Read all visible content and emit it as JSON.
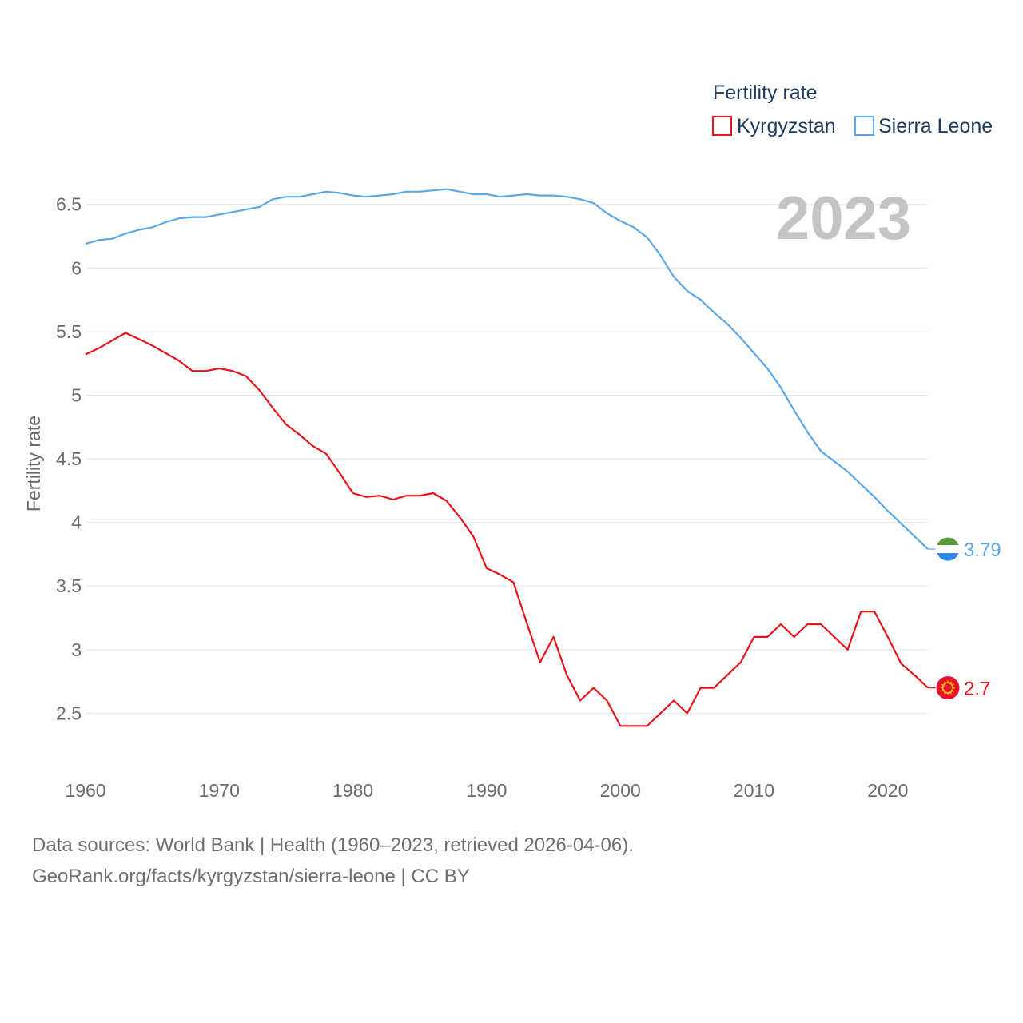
{
  "chart_data": {
    "type": "line",
    "title": "Fertility rate",
    "ylabel": "Fertility rate",
    "xlabel": "",
    "current_year_label": "2023",
    "xlim": [
      1960,
      2023
    ],
    "ylim": [
      2.0,
      6.85
    ],
    "x_ticks": [
      1960,
      1970,
      1980,
      1990,
      2000,
      2010,
      2020
    ],
    "y_ticks": [
      2.5,
      3,
      3.5,
      4,
      4.5,
      5,
      5.5,
      6,
      6.5
    ],
    "grid": true,
    "legend": "top-right",
    "x": [
      1960,
      1961,
      1962,
      1963,
      1964,
      1965,
      1966,
      1967,
      1968,
      1969,
      1970,
      1971,
      1972,
      1973,
      1974,
      1975,
      1976,
      1977,
      1978,
      1979,
      1980,
      1981,
      1982,
      1983,
      1984,
      1985,
      1986,
      1987,
      1988,
      1989,
      1990,
      1991,
      1992,
      1993,
      1994,
      1995,
      1996,
      1997,
      1998,
      1999,
      2000,
      2001,
      2002,
      2003,
      2004,
      2005,
      2006,
      2007,
      2008,
      2009,
      2010,
      2011,
      2012,
      2013,
      2014,
      2015,
      2016,
      2017,
      2018,
      2019,
      2020,
      2021,
      2022,
      2023
    ],
    "series": [
      {
        "name": "Kyrgyzstan",
        "color": "#e8141c",
        "end_label": "2.7",
        "flag_icon": "kyrgyzstan-flag-icon",
        "values": [
          5.32,
          5.37,
          5.43,
          5.49,
          5.44,
          5.39,
          5.33,
          5.27,
          5.19,
          5.19,
          5.21,
          5.19,
          5.15,
          5.04,
          4.9,
          4.77,
          4.69,
          4.6,
          4.54,
          4.39,
          4.23,
          4.2,
          4.21,
          4.18,
          4.21,
          4.21,
          4.23,
          4.17,
          4.04,
          3.89,
          3.64,
          3.59,
          3.53,
          3.21,
          2.9,
          3.1,
          2.8,
          2.6,
          2.7,
          2.6,
          2.4,
          2.4,
          2.4,
          2.5,
          2.6,
          2.5,
          2.7,
          2.7,
          2.8,
          2.9,
          3.1,
          3.1,
          3.2,
          3.1,
          3.2,
          3.2,
          3.1,
          3.0,
          3.3,
          3.3,
          3.1,
          2.89,
          2.8,
          2.7
        ]
      },
      {
        "name": "Sierra Leone",
        "color": "#5ba7e8",
        "end_label": "3.79",
        "flag_icon": "sierra-leone-flag-icon",
        "values": [
          6.19,
          6.22,
          6.23,
          6.27,
          6.3,
          6.32,
          6.36,
          6.39,
          6.4,
          6.4,
          6.42,
          6.44,
          6.46,
          6.48,
          6.54,
          6.56,
          6.56,
          6.58,
          6.6,
          6.59,
          6.57,
          6.56,
          6.57,
          6.58,
          6.6,
          6.6,
          6.61,
          6.62,
          6.6,
          6.58,
          6.58,
          6.56,
          6.57,
          6.58,
          6.57,
          6.57,
          6.56,
          6.54,
          6.51,
          6.43,
          6.37,
          6.32,
          6.24,
          6.1,
          5.93,
          5.82,
          5.75,
          5.65,
          5.56,
          5.45,
          5.33,
          5.21,
          5.06,
          4.88,
          4.71,
          4.56,
          4.48,
          4.4,
          4.3,
          4.2,
          4.09,
          3.99,
          3.89,
          3.79
        ]
      }
    ]
  },
  "footer": {
    "line1": "Data sources: World Bank | Health (1960–2023, retrieved 2026-04-06).",
    "line2": "GeoRank.org/facts/kyrgyzstan/sierra-leone | CC BY"
  }
}
